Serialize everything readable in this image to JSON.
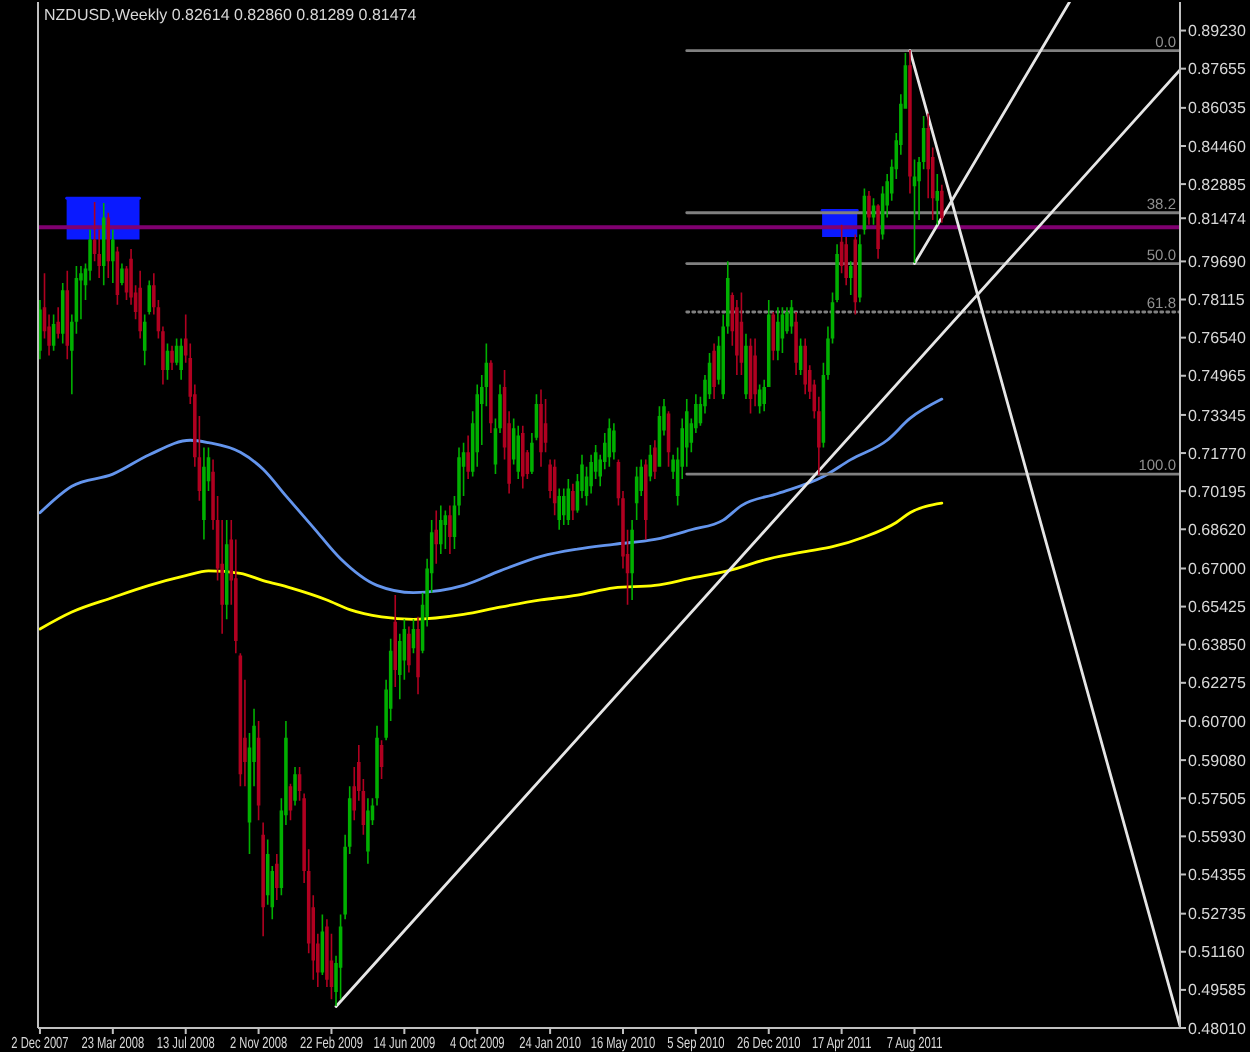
{
  "chart_data": {
    "type": "candlestick",
    "title": "NZDUSD,Weekly 0.82614 0.82860 0.81289 0.81474",
    "x": [
      "2007-12-02",
      "2007-12-09",
      "2007-12-16",
      "2007-12-23",
      "2007-12-30",
      "2008-01-06",
      "2008-01-13",
      "2008-01-20",
      "2008-01-27",
      "2008-02-03",
      "2008-02-10",
      "2008-02-17",
      "2008-02-24",
      "2008-03-02",
      "2008-03-09",
      "2008-03-16",
      "2008-03-23",
      "2008-03-30",
      "2008-04-06",
      "2008-04-13",
      "2008-04-20",
      "2008-04-27",
      "2008-05-04",
      "2008-05-11",
      "2008-05-18",
      "2008-05-25",
      "2008-06-01",
      "2008-06-08",
      "2008-06-15",
      "2008-06-22",
      "2008-06-29",
      "2008-07-06",
      "2008-07-13",
      "2008-07-20",
      "2008-07-27",
      "2008-08-03",
      "2008-08-10",
      "2008-08-17",
      "2008-08-24",
      "2008-08-31",
      "2008-09-07",
      "2008-09-14",
      "2008-09-21",
      "2008-09-28",
      "2008-10-05",
      "2008-10-12",
      "2008-10-19",
      "2008-10-26",
      "2008-11-02",
      "2008-11-09",
      "2008-11-16",
      "2008-11-23",
      "2008-11-30",
      "2008-12-07",
      "2008-12-14",
      "2008-12-21",
      "2008-12-28",
      "2009-01-04",
      "2009-01-11",
      "2009-01-18",
      "2009-01-25",
      "2009-02-01",
      "2009-02-08",
      "2009-02-15",
      "2009-02-22",
      "2009-03-01",
      "2009-03-08",
      "2009-03-15",
      "2009-03-22",
      "2009-03-29",
      "2009-04-05",
      "2009-04-12",
      "2009-04-19",
      "2009-04-26",
      "2009-05-03",
      "2009-05-10",
      "2009-05-17",
      "2009-05-24",
      "2009-05-31",
      "2009-06-07",
      "2009-06-14",
      "2009-06-21",
      "2009-06-28",
      "2009-07-05",
      "2009-07-12",
      "2009-07-19",
      "2009-07-26",
      "2009-08-02",
      "2009-08-09",
      "2009-08-16",
      "2009-08-23",
      "2009-08-30",
      "2009-09-06",
      "2009-09-13",
      "2009-09-20",
      "2009-09-27",
      "2009-10-04",
      "2009-10-11",
      "2009-10-18",
      "2009-10-25",
      "2009-11-01",
      "2009-11-08",
      "2009-11-15",
      "2009-11-22",
      "2009-11-29",
      "2009-12-06",
      "2009-12-13",
      "2009-12-20",
      "2009-12-27",
      "2010-01-03",
      "2010-01-10",
      "2010-01-17",
      "2010-01-24",
      "2010-01-31",
      "2010-02-07",
      "2010-02-14",
      "2010-02-21",
      "2010-02-28",
      "2010-03-07",
      "2010-03-14",
      "2010-03-21",
      "2010-03-28",
      "2010-04-04",
      "2010-04-11",
      "2010-04-18",
      "2010-04-25",
      "2010-05-02",
      "2010-05-09",
      "2010-05-16",
      "2010-05-23",
      "2010-05-30",
      "2010-06-06",
      "2010-06-13",
      "2010-06-20",
      "2010-06-27",
      "2010-07-04",
      "2010-07-11",
      "2010-07-18",
      "2010-07-25",
      "2010-08-01",
      "2010-08-08",
      "2010-08-15",
      "2010-08-22",
      "2010-08-29",
      "2010-09-05",
      "2010-09-12",
      "2010-09-19",
      "2010-09-26",
      "2010-10-03",
      "2010-10-10",
      "2010-10-17",
      "2010-10-24",
      "2010-10-31",
      "2010-11-07",
      "2010-11-14",
      "2010-11-21",
      "2010-11-28",
      "2010-12-05",
      "2010-12-12",
      "2010-12-19",
      "2010-12-26",
      "2011-01-02",
      "2011-01-09",
      "2011-01-16",
      "2011-01-23",
      "2011-01-30",
      "2011-02-06",
      "2011-02-13",
      "2011-02-20",
      "2011-02-27",
      "2011-03-06",
      "2011-03-13",
      "2011-03-20",
      "2011-03-27",
      "2011-04-03",
      "2011-04-10",
      "2011-04-17",
      "2011-04-24",
      "2011-05-01",
      "2011-05-08",
      "2011-05-15",
      "2011-05-22",
      "2011-05-29",
      "2011-06-05",
      "2011-06-12",
      "2011-06-19",
      "2011-06-26",
      "2011-07-03",
      "2011-07-10",
      "2011-07-17",
      "2011-07-24",
      "2011-07-31",
      "2011-08-07",
      "2011-08-14",
      "2011-08-21",
      "2011-08-28",
      "2011-09-04",
      "2011-09-11",
      "2011-09-18"
    ],
    "ohlc": [
      [
        0.76,
        0.781,
        0.7565,
        0.777
      ],
      [
        0.778,
        0.792,
        0.765,
        0.768
      ],
      [
        0.77,
        0.775,
        0.758,
        0.762
      ],
      [
        0.762,
        0.775,
        0.76,
        0.771
      ],
      [
        0.772,
        0.778,
        0.765,
        0.767
      ],
      [
        0.767,
        0.788,
        0.763,
        0.785
      ],
      [
        0.785,
        0.793,
        0.7565,
        0.762
      ],
      [
        0.76,
        0.775,
        0.742,
        0.772
      ],
      [
        0.772,
        0.795,
        0.767,
        0.79
      ],
      [
        0.789,
        0.795,
        0.773,
        0.792
      ],
      [
        0.787,
        0.796,
        0.781,
        0.794
      ],
      [
        0.793,
        0.81,
        0.789,
        0.806
      ],
      [
        0.806,
        0.8215,
        0.797,
        0.8
      ],
      [
        0.8,
        0.81,
        0.79,
        0.795
      ],
      [
        0.795,
        0.821,
        0.787,
        0.815
      ],
      [
        0.815,
        0.817,
        0.79,
        0.797
      ],
      [
        0.797,
        0.81,
        0.788,
        0.806
      ],
      [
        0.801,
        0.803,
        0.779,
        0.783
      ],
      [
        0.788,
        0.796,
        0.787,
        0.794
      ],
      [
        0.794,
        0.795,
        0.781,
        0.784
      ],
      [
        0.798,
        0.802,
        0.779,
        0.782
      ],
      [
        0.784,
        0.787,
        0.773,
        0.776
      ],
      [
        0.786,
        0.793,
        0.765,
        0.768
      ],
      [
        0.76,
        0.775,
        0.754,
        0.772
      ],
      [
        0.776,
        0.789,
        0.775,
        0.787
      ],
      [
        0.787,
        0.792,
        0.775,
        0.778
      ],
      [
        0.778,
        0.781,
        0.765,
        0.768
      ],
      [
        0.768,
        0.77,
        0.746,
        0.752
      ],
      [
        0.752,
        0.763,
        0.748,
        0.76
      ],
      [
        0.76,
        0.762,
        0.752,
        0.755
      ],
      [
        0.755,
        0.765,
        0.754,
        0.762
      ],
      [
        0.752,
        0.765,
        0.748,
        0.762
      ],
      [
        0.765,
        0.775,
        0.755,
        0.758
      ],
      [
        0.757,
        0.763,
        0.738,
        0.741
      ],
      [
        0.742,
        0.746,
        0.712,
        0.716
      ],
      [
        0.716,
        0.733,
        0.698,
        0.702
      ],
      [
        0.69,
        0.72,
        0.682,
        0.712
      ],
      [
        0.706,
        0.72,
        0.702,
        0.716
      ],
      [
        0.71,
        0.715,
        0.686,
        0.69
      ],
      [
        0.69,
        0.7,
        0.665,
        0.67
      ],
      [
        0.672,
        0.69,
        0.643,
        0.655
      ],
      [
        0.655,
        0.69,
        0.649,
        0.68
      ],
      [
        0.682,
        0.69,
        0.655,
        0.665
      ],
      [
        0.666,
        0.682,
        0.635,
        0.64
      ],
      [
        0.634,
        0.635,
        0.58,
        0.585
      ],
      [
        0.6,
        0.624,
        0.58,
        0.59
      ],
      [
        0.565,
        0.602,
        0.552,
        0.596
      ],
      [
        0.59,
        0.612,
        0.58,
        0.605
      ],
      [
        0.6,
        0.607,
        0.566,
        0.572
      ],
      [
        0.56,
        0.565,
        0.518,
        0.53
      ],
      [
        0.535,
        0.558,
        0.531,
        0.552
      ],
      [
        0.53,
        0.547,
        0.525,
        0.545
      ],
      [
        0.548,
        0.552,
        0.533,
        0.538
      ],
      [
        0.538,
        0.575,
        0.535,
        0.57
      ],
      [
        0.568,
        0.607,
        0.564,
        0.6
      ],
      [
        0.58,
        0.581,
        0.566,
        0.57
      ],
      [
        0.574,
        0.588,
        0.572,
        0.585
      ],
      [
        0.585,
        0.588,
        0.574,
        0.578
      ],
      [
        0.575,
        0.577,
        0.54,
        0.545
      ],
      [
        0.545,
        0.554,
        0.511,
        0.515
      ],
      [
        0.53,
        0.535,
        0.5,
        0.508
      ],
      [
        0.515,
        0.519,
        0.497,
        0.503
      ],
      [
        0.503,
        0.527,
        0.502,
        0.52
      ],
      [
        0.522,
        0.525,
        0.497,
        0.5
      ],
      [
        0.508,
        0.519,
        0.492,
        0.497
      ],
      [
        0.495,
        0.51,
        0.4892,
        0.507
      ],
      [
        0.505,
        0.527,
        0.492,
        0.522
      ],
      [
        0.527,
        0.56,
        0.525,
        0.555
      ],
      [
        0.555,
        0.58,
        0.552,
        0.575
      ],
      [
        0.58,
        0.588,
        0.566,
        0.57
      ],
      [
        0.59,
        0.597,
        0.574,
        0.578
      ],
      [
        0.578,
        0.583,
        0.56,
        0.564
      ],
      [
        0.553,
        0.575,
        0.548,
        0.57
      ],
      [
        0.566,
        0.575,
        0.564,
        0.572
      ],
      [
        0.575,
        0.605,
        0.572,
        0.6
      ],
      [
        0.597,
        0.599,
        0.583,
        0.588
      ],
      [
        0.6,
        0.624,
        0.599,
        0.62
      ],
      [
        0.612,
        0.641,
        0.607,
        0.636
      ],
      [
        0.648,
        0.659,
        0.621,
        0.628
      ],
      [
        0.626,
        0.643,
        0.616,
        0.64
      ],
      [
        0.632,
        0.649,
        0.624,
        0.645
      ],
      [
        0.643,
        0.646,
        0.627,
        0.63
      ],
      [
        0.637,
        0.649,
        0.635,
        0.645
      ],
      [
        0.645,
        0.65,
        0.618,
        0.625
      ],
      [
        0.636,
        0.66,
        0.635,
        0.655
      ],
      [
        0.65,
        0.674,
        0.646,
        0.67
      ],
      [
        0.668,
        0.69,
        0.66,
        0.685
      ],
      [
        0.686,
        0.694,
        0.672,
        0.68
      ],
      [
        0.68,
        0.696,
        0.676,
        0.69
      ],
      [
        0.688,
        0.694,
        0.678,
        0.692
      ],
      [
        0.692,
        0.696,
        0.676,
        0.683
      ],
      [
        0.683,
        0.7,
        0.678,
        0.696
      ],
      [
        0.696,
        0.72,
        0.692,
        0.716
      ],
      [
        0.712,
        0.722,
        0.7,
        0.718
      ],
      [
        0.718,
        0.725,
        0.707,
        0.71
      ],
      [
        0.71,
        0.735,
        0.708,
        0.73
      ],
      [
        0.718,
        0.746,
        0.712,
        0.742
      ],
      [
        0.738,
        0.75,
        0.721,
        0.745
      ],
      [
        0.745,
        0.763,
        0.737,
        0.755
      ],
      [
        0.755,
        0.756,
        0.726,
        0.73
      ],
      [
        0.713,
        0.732,
        0.709,
        0.728
      ],
      [
        0.728,
        0.746,
        0.726,
        0.742
      ],
      [
        0.745,
        0.752,
        0.715,
        0.72
      ],
      [
        0.73,
        0.735,
        0.701,
        0.705
      ],
      [
        0.715,
        0.732,
        0.713,
        0.728
      ],
      [
        0.71,
        0.729,
        0.707,
        0.725
      ],
      [
        0.726,
        0.729,
        0.703,
        0.708
      ],
      [
        0.718,
        0.719,
        0.707,
        0.709
      ],
      [
        0.71,
        0.726,
        0.709,
        0.722
      ],
      [
        0.724,
        0.742,
        0.723,
        0.738
      ],
      [
        0.738,
        0.744,
        0.712,
        0.718
      ],
      [
        0.73,
        0.74,
        0.718,
        0.722
      ],
      [
        0.713,
        0.715,
        0.699,
        0.702
      ],
      [
        0.712,
        0.715,
        0.692,
        0.697
      ],
      [
        0.69,
        0.703,
        0.686,
        0.7
      ],
      [
        0.692,
        0.703,
        0.688,
        0.7
      ],
      [
        0.69,
        0.707,
        0.688,
        0.703
      ],
      [
        0.702,
        0.705,
        0.69,
        0.694
      ],
      [
        0.694,
        0.709,
        0.693,
        0.706
      ],
      [
        0.702,
        0.717,
        0.699,
        0.713
      ],
      [
        0.7,
        0.712,
        0.696,
        0.708
      ],
      [
        0.704,
        0.717,
        0.701,
        0.714
      ],
      [
        0.71,
        0.721,
        0.707,
        0.718
      ],
      [
        0.708,
        0.717,
        0.704,
        0.715
      ],
      [
        0.714,
        0.726,
        0.711,
        0.722
      ],
      [
        0.716,
        0.732,
        0.712,
        0.728
      ],
      [
        0.718,
        0.73,
        0.715,
        0.727
      ],
      [
        0.714,
        0.715,
        0.696,
        0.699
      ],
      [
        0.699,
        0.702,
        0.67,
        0.675
      ],
      [
        0.676,
        0.686,
        0.655,
        0.668
      ],
      [
        0.668,
        0.69,
        0.657,
        0.686
      ],
      [
        0.697,
        0.712,
        0.69,
        0.708
      ],
      [
        0.702,
        0.715,
        0.7,
        0.712
      ],
      [
        0.713,
        0.715,
        0.682,
        0.69
      ],
      [
        0.708,
        0.721,
        0.706,
        0.717
      ],
      [
        0.72,
        0.723,
        0.707,
        0.71
      ],
      [
        0.712,
        0.737,
        0.712,
        0.733
      ],
      [
        0.727,
        0.74,
        0.725,
        0.737
      ],
      [
        0.734,
        0.735,
        0.712,
        0.718
      ],
      [
        0.71,
        0.717,
        0.707,
        0.715
      ],
      [
        0.7,
        0.72,
        0.696,
        0.715
      ],
      [
        0.712,
        0.732,
        0.707,
        0.728
      ],
      [
        0.72,
        0.74,
        0.712,
        0.735
      ],
      [
        0.722,
        0.732,
        0.718,
        0.73
      ],
      [
        0.728,
        0.742,
        0.726,
        0.738
      ],
      [
        0.73,
        0.741,
        0.729,
        0.738
      ],
      [
        0.737,
        0.75,
        0.734,
        0.748
      ],
      [
        0.742,
        0.759,
        0.74,
        0.755
      ],
      [
        0.76,
        0.763,
        0.74,
        0.745
      ],
      [
        0.748,
        0.766,
        0.746,
        0.762
      ],
      [
        0.742,
        0.775,
        0.74,
        0.77
      ],
      [
        0.77,
        0.797,
        0.767,
        0.79
      ],
      [
        0.783,
        0.784,
        0.762,
        0.768
      ],
      [
        0.778,
        0.781,
        0.75,
        0.758
      ],
      [
        0.772,
        0.784,
        0.75,
        0.755
      ],
      [
        0.742,
        0.767,
        0.74,
        0.762
      ],
      [
        0.762,
        0.765,
        0.734,
        0.74
      ],
      [
        0.758,
        0.765,
        0.737,
        0.742
      ],
      [
        0.737,
        0.746,
        0.734,
        0.744
      ],
      [
        0.738,
        0.748,
        0.735,
        0.745
      ],
      [
        0.745,
        0.781,
        0.745,
        0.775
      ],
      [
        0.775,
        0.776,
        0.756,
        0.76
      ],
      [
        0.76,
        0.778,
        0.756,
        0.772
      ],
      [
        0.765,
        0.778,
        0.759,
        0.775
      ],
      [
        0.768,
        0.778,
        0.767,
        0.776
      ],
      [
        0.77,
        0.781,
        0.767,
        0.778
      ],
      [
        0.772,
        0.776,
        0.75,
        0.755
      ],
      [
        0.752,
        0.765,
        0.75,
        0.762
      ],
      [
        0.762,
        0.765,
        0.742,
        0.746
      ],
      [
        0.752,
        0.754,
        0.74,
        0.743
      ],
      [
        0.746,
        0.748,
        0.732,
        0.735
      ],
      [
        0.735,
        0.741,
        0.7085,
        0.72
      ],
      [
        0.722,
        0.755,
        0.72,
        0.75
      ],
      [
        0.75,
        0.77,
        0.748,
        0.765
      ],
      [
        0.765,
        0.784,
        0.763,
        0.78
      ],
      [
        0.781,
        0.804,
        0.78,
        0.8
      ],
      [
        0.805,
        0.812,
        0.792,
        0.795
      ],
      [
        0.804,
        0.807,
        0.787,
        0.79
      ],
      [
        0.79,
        0.797,
        0.783,
        0.795
      ],
      [
        0.806,
        0.808,
        0.775,
        0.78
      ],
      [
        0.782,
        0.808,
        0.78,
        0.804
      ],
      [
        0.81,
        0.827,
        0.808,
        0.824
      ],
      [
        0.824,
        0.826,
        0.812,
        0.815
      ],
      [
        0.815,
        0.823,
        0.812,
        0.82
      ],
      [
        0.82,
        0.8205,
        0.798,
        0.802
      ],
      [
        0.808,
        0.828,
        0.806,
        0.825
      ],
      [
        0.82,
        0.833,
        0.815,
        0.83
      ],
      [
        0.825,
        0.839,
        0.822,
        0.836
      ],
      [
        0.835,
        0.85,
        0.831,
        0.847
      ],
      [
        0.845,
        0.866,
        0.841,
        0.862
      ],
      [
        0.86,
        0.883,
        0.86,
        0.878
      ],
      [
        0.878,
        0.8843,
        0.825,
        0.832
      ],
      [
        0.828,
        0.839,
        0.7962,
        0.832
      ],
      [
        0.83,
        0.84,
        0.814,
        0.838
      ],
      [
        0.838,
        0.857,
        0.835,
        0.852
      ],
      [
        0.852,
        0.858,
        0.823,
        0.835
      ],
      [
        0.84,
        0.844,
        0.814,
        0.823
      ],
      [
        0.822,
        0.833,
        0.812,
        0.826
      ],
      [
        0.82614,
        0.8286,
        0.81289,
        0.81474
      ]
    ],
    "colors": [
      "#00b000",
      "#b00020",
      "#b00020",
      "#00b000",
      "#b00020",
      "#00b000",
      "#b00020",
      "#00b000",
      "#00b000",
      "#00b000",
      "#00b000",
      "#00b000",
      "#b00020",
      "#b00020",
      "#00b000",
      "#b00020",
      "#00b000",
      "#b00020",
      "#00b000",
      "#b00020",
      "#b00020",
      "#b00020",
      "#b00020",
      "#00b000",
      "#00b000",
      "#b00020",
      "#b00020",
      "#b00020",
      "#00b000",
      "#b00020",
      "#00b000",
      "#00b000",
      "#b00020",
      "#b00020",
      "#b00020",
      "#b00020",
      "#00b000",
      "#00b000",
      "#b00020",
      "#b00020",
      "#b00020",
      "#00b000",
      "#b00020",
      "#b00020",
      "#b00020",
      "#b00020",
      "#00b000",
      "#00b000",
      "#b00020",
      "#b00020",
      "#00b000",
      "#00b000",
      "#b00020",
      "#00b000",
      "#00b000",
      "#b00020",
      "#00b000",
      "#b00020",
      "#b00020",
      "#b00020",
      "#b00020",
      "#b00020",
      "#00b000",
      "#b00020",
      "#b00020",
      "#00b000",
      "#00b000",
      "#00b000",
      "#00b000",
      "#b00020",
      "#b00020",
      "#b00020",
      "#00b000",
      "#00b000",
      "#00b000",
      "#b00020",
      "#00b000",
      "#00b000",
      "#b00020",
      "#00b000",
      "#00b000",
      "#b00020",
      "#00b000",
      "#b00020",
      "#00b000",
      "#00b000",
      "#00b000",
      "#b00020",
      "#00b000",
      "#00b000",
      "#b00020",
      "#00b000",
      "#00b000",
      "#00b000",
      "#b00020",
      "#00b000",
      "#00b000",
      "#00b000",
      "#00b000",
      "#b00020",
      "#00b000",
      "#00b000",
      "#b00020",
      "#b00020",
      "#00b000",
      "#00b000",
      "#b00020",
      "#b00020",
      "#00b000",
      "#00b000",
      "#b00020",
      "#b00020",
      "#b00020",
      "#b00020",
      "#00b000",
      "#00b000",
      "#00b000",
      "#b00020",
      "#00b000",
      "#00b000",
      "#00b000",
      "#00b000",
      "#00b000",
      "#00b000",
      "#00b000",
      "#00b000",
      "#00b000",
      "#b00020",
      "#b00020",
      "#b00020",
      "#00b000",
      "#00b000",
      "#00b000",
      "#b00020",
      "#00b000",
      "#b00020",
      "#00b000",
      "#00b000",
      "#b00020",
      "#00b000",
      "#00b000",
      "#00b000",
      "#00b000",
      "#00b000",
      "#00b000",
      "#00b000",
      "#00b000",
      "#00b000",
      "#b00020",
      "#00b000",
      "#00b000",
      "#00b000",
      "#b00020",
      "#b00020",
      "#b00020",
      "#00b000",
      "#b00020",
      "#b00020",
      "#00b000",
      "#00b000",
      "#00b000",
      "#b00020",
      "#00b000",
      "#00b000",
      "#00b000",
      "#00b000",
      "#b00020",
      "#00b000",
      "#b00020",
      "#b00020",
      "#b00020",
      "#b00020",
      "#00b000",
      "#00b000",
      "#00b000",
      "#00b000",
      "#b00020",
      "#b00020",
      "#00b000",
      "#b00020",
      "#00b000",
      "#00b000",
      "#b00020",
      "#00b000",
      "#b00020",
      "#00b000",
      "#00b000",
      "#00b000",
      "#00b000",
      "#00b000",
      "#00b000",
      "#b00020",
      "#00b000",
      "#00b000",
      "#00b000",
      "#b00020",
      "#b00020",
      "#00b000",
      "#b00020"
    ],
    "series": [
      {
        "type": "line",
        "color": "#0a1aff",
        "x": [
          "2008-01-12",
          "2008-05-03"
        ],
        "values": [
          0.823,
          0.823
        ],
        "lower": [
          0.806,
          0.806
        ],
        "upper": [
          0.823,
          0.823
        ]
      },
      {
        "type": "line",
        "color": "#0a1aff",
        "x": [
          "2011-03-18",
          "2011-05-11"
        ],
        "values": [
          0.818,
          0.818
        ],
        "lower": [
          0.807,
          0.807
        ],
        "upper": [
          0.818,
          0.818
        ]
      },
      {
        "type": "line",
        "color": "#6495ed",
        "x": [
          "2007-12-02",
          "2008-01-20",
          "2008-03-23",
          "2008-05-18",
          "2008-07-20",
          "2008-08-17",
          "2008-10-05",
          "2008-11-09",
          "2008-12-14",
          "2009-01-25",
          "2009-03-08",
          "2009-05-03",
          "2009-06-28",
          "2009-09-13",
          "2009-11-08",
          "2010-01-10",
          "2010-03-07",
          "2010-05-02",
          "2010-07-04",
          "2010-08-29",
          "2010-10-17",
          "2010-11-14",
          "2011-01-09",
          "2011-03-20",
          "2011-05-01",
          "2011-06-26",
          "2011-07-31",
          "2011-09-18"
        ],
        "values": [
          0.693,
          0.704,
          0.709,
          0.717,
          0.723,
          0.722,
          0.718,
          0.711,
          0.7,
          0.687,
          0.674,
          0.663,
          0.66,
          0.663,
          0.669,
          0.675,
          0.678,
          0.68,
          0.682,
          0.686,
          0.69,
          0.696,
          0.701,
          0.708,
          0.715,
          0.723,
          0.732,
          0.74
        ]
      },
      {
        "type": "line",
        "color": "#ffff00",
        "x": [
          "2007-12-02",
          "2008-01-20",
          "2008-03-23",
          "2008-05-18",
          "2008-07-13",
          "2008-08-17",
          "2008-10-05",
          "2008-11-09",
          "2008-12-21",
          "2009-02-15",
          "2009-03-22",
          "2009-05-10",
          "2009-06-28",
          "2009-09-13",
          "2009-11-08",
          "2010-01-10",
          "2010-03-07",
          "2010-05-02",
          "2010-07-04",
          "2010-08-29",
          "2010-10-24",
          "2010-12-26",
          "2011-02-20",
          "2011-04-03",
          "2011-05-22",
          "2011-07-10",
          "2011-07-31",
          "2011-09-18"
        ],
        "values": [
          0.645,
          0.652,
          0.658,
          0.663,
          0.667,
          0.669,
          0.668,
          0.665,
          0.662,
          0.657,
          0.653,
          0.65,
          0.649,
          0.651,
          0.654,
          0.657,
          0.659,
          0.662,
          0.663,
          0.666,
          0.669,
          0.674,
          0.677,
          0.679,
          0.683,
          0.689,
          0.693,
          0.697
        ]
      },
      {
        "type": "line",
        "color": "#808080",
        "x": [
          "2010-08-22",
          "2012-09-18"
        ],
        "values": [
          0.884,
          0.884
        ]
      },
      {
        "type": "line",
        "color": "#808080",
        "x": [
          "2010-08-22",
          "2012-09-18"
        ],
        "values": [
          0.817,
          0.817
        ]
      },
      {
        "type": "line",
        "color": "#808080",
        "x": [
          "2010-08-22",
          "2012-09-18"
        ],
        "values": [
          0.796,
          0.796
        ]
      },
      {
        "type": "line",
        "color": "#808080",
        "line_style": "dotted",
        "x": [
          "2010-08-22",
          "2012-09-18"
        ],
        "values": [
          0.776,
          0.776
        ]
      },
      {
        "type": "line",
        "color": "#808080",
        "x": [
          "2010-08-22",
          "2012-09-18"
        ],
        "values": [
          0.709,
          0.709
        ]
      },
      {
        "type": "line",
        "color": "#e6e6e6",
        "x": [
          "2009-03-01",
          "2012-09-18"
        ],
        "values": [
          0.489,
          0.876
        ]
      },
      {
        "type": "line",
        "color": "#e6e6e6",
        "x": [
          "2011-08-07",
          "2012-04-01"
        ],
        "values": [
          0.796,
          0.904
        ]
      },
      {
        "type": "line",
        "color": "#e6e6e6",
        "x": [
          "2011-07-31",
          "2012-09-18"
        ],
        "values": [
          0.884,
          0.481
        ]
      }
    ],
    "ref_lines": [
      {
        "axis": "y",
        "value": 0.811,
        "color": "#800070"
      }
    ],
    "annotations": [
      {
        "text": "0.0",
        "x": "2012-09-18",
        "y": 0.884
      },
      {
        "text": "38.2",
        "x": "2012-09-18",
        "y": 0.817
      },
      {
        "text": "50.0",
        "x": "2012-09-18",
        "y": 0.796
      },
      {
        "text": "61.8",
        "x": "2012-09-18",
        "y": 0.776
      },
      {
        "text": "100.0",
        "x": "2012-09-18",
        "y": 0.709
      }
    ],
    "xlim": [
      "2007-11-29",
      "2012-09-18"
    ],
    "xticks": [
      {
        "value": "2007-12-02",
        "label": "2 Dec 2007"
      },
      {
        "value": "2008-03-23",
        "label": "23 Mar 2008"
      },
      {
        "value": "2008-07-13",
        "label": "13 Jul 2008"
      },
      {
        "value": "2008-11-02",
        "label": "2 Nov 2008"
      },
      {
        "value": "2009-02-22",
        "label": "22 Feb 2009"
      },
      {
        "value": "2009-06-14",
        "label": "14 Jun 2009"
      },
      {
        "value": "2009-10-04",
        "label": "4 Oct 2009"
      },
      {
        "value": "2010-01-24",
        "label": "24 Jan 2010"
      },
      {
        "value": "2010-05-16",
        "label": "16 May 2010"
      },
      {
        "value": "2010-09-05",
        "label": "5 Sep 2010"
      },
      {
        "value": "2010-12-26",
        "label": "26 Dec 2010"
      },
      {
        "value": "2011-04-17",
        "label": "17 Apr 2011"
      },
      {
        "value": "2011-08-07",
        "label": "7 Aug 2011"
      }
    ],
    "ylim": [
      0.4801,
      0.9041
    ],
    "yticks": [
      {
        "value": 0.8923,
        "label": "0.89230"
      },
      {
        "value": 0.87655,
        "label": "0.87655"
      },
      {
        "value": 0.86035,
        "label": "0.86035"
      },
      {
        "value": 0.8446,
        "label": "0.84460"
      },
      {
        "value": 0.82885,
        "label": "0.82885"
      },
      {
        "value": 0.81474,
        "label": "0.81474"
      },
      {
        "value": 0.7969,
        "label": "0.79690"
      },
      {
        "value": 0.78115,
        "label": "0.78115"
      },
      {
        "value": 0.7654,
        "label": "0.76540"
      },
      {
        "value": 0.74965,
        "label": "0.74965"
      },
      {
        "value": 0.73345,
        "label": "0.73345"
      },
      {
        "value": 0.7177,
        "label": "0.71770"
      },
      {
        "value": 0.70195,
        "label": "0.70195"
      },
      {
        "value": 0.6862,
        "label": "0.68620"
      },
      {
        "value": 0.67,
        "label": "0.67000"
      },
      {
        "value": 0.65425,
        "label": "0.65425"
      },
      {
        "value": 0.6385,
        "label": "0.63850"
      },
      {
        "value": 0.62275,
        "label": "0.62275"
      },
      {
        "value": 0.607,
        "label": "0.60700"
      },
      {
        "value": 0.5908,
        "label": "0.59080"
      },
      {
        "value": 0.57505,
        "label": "0.57505"
      },
      {
        "value": 0.5593,
        "label": "0.55930"
      },
      {
        "value": 0.54355,
        "label": "0.54355"
      },
      {
        "value": 0.52735,
        "label": "0.52735"
      },
      {
        "value": 0.5116,
        "label": "0.51160"
      },
      {
        "value": 0.49585,
        "label": "0.49585"
      },
      {
        "value": 0.4801,
        "label": "0.48010"
      }
    ]
  }
}
